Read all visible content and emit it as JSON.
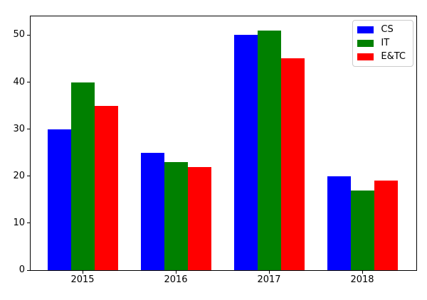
{
  "chart_data": {
    "type": "bar",
    "title": "",
    "xlabel": "",
    "ylabel": "",
    "categories": [
      "2015",
      "2016",
      "2017",
      "2018"
    ],
    "series": [
      {
        "name": "CS",
        "color": "#0000ff",
        "values": [
          30,
          25,
          50,
          20
        ]
      },
      {
        "name": "IT",
        "color": "#008000",
        "values": [
          40,
          23,
          51,
          17
        ]
      },
      {
        "name": "E&TC",
        "color": "#ff0000",
        "values": [
          35,
          22,
          45,
          19
        ]
      }
    ],
    "ylim": [
      0,
      54
    ],
    "yticks": [
      0,
      10,
      20,
      30,
      40,
      50
    ],
    "legend_position": "upper right",
    "grid": false,
    "background_color": "#ffffff",
    "spine_color": "#000000",
    "legend_border_color": "#cccccc"
  }
}
